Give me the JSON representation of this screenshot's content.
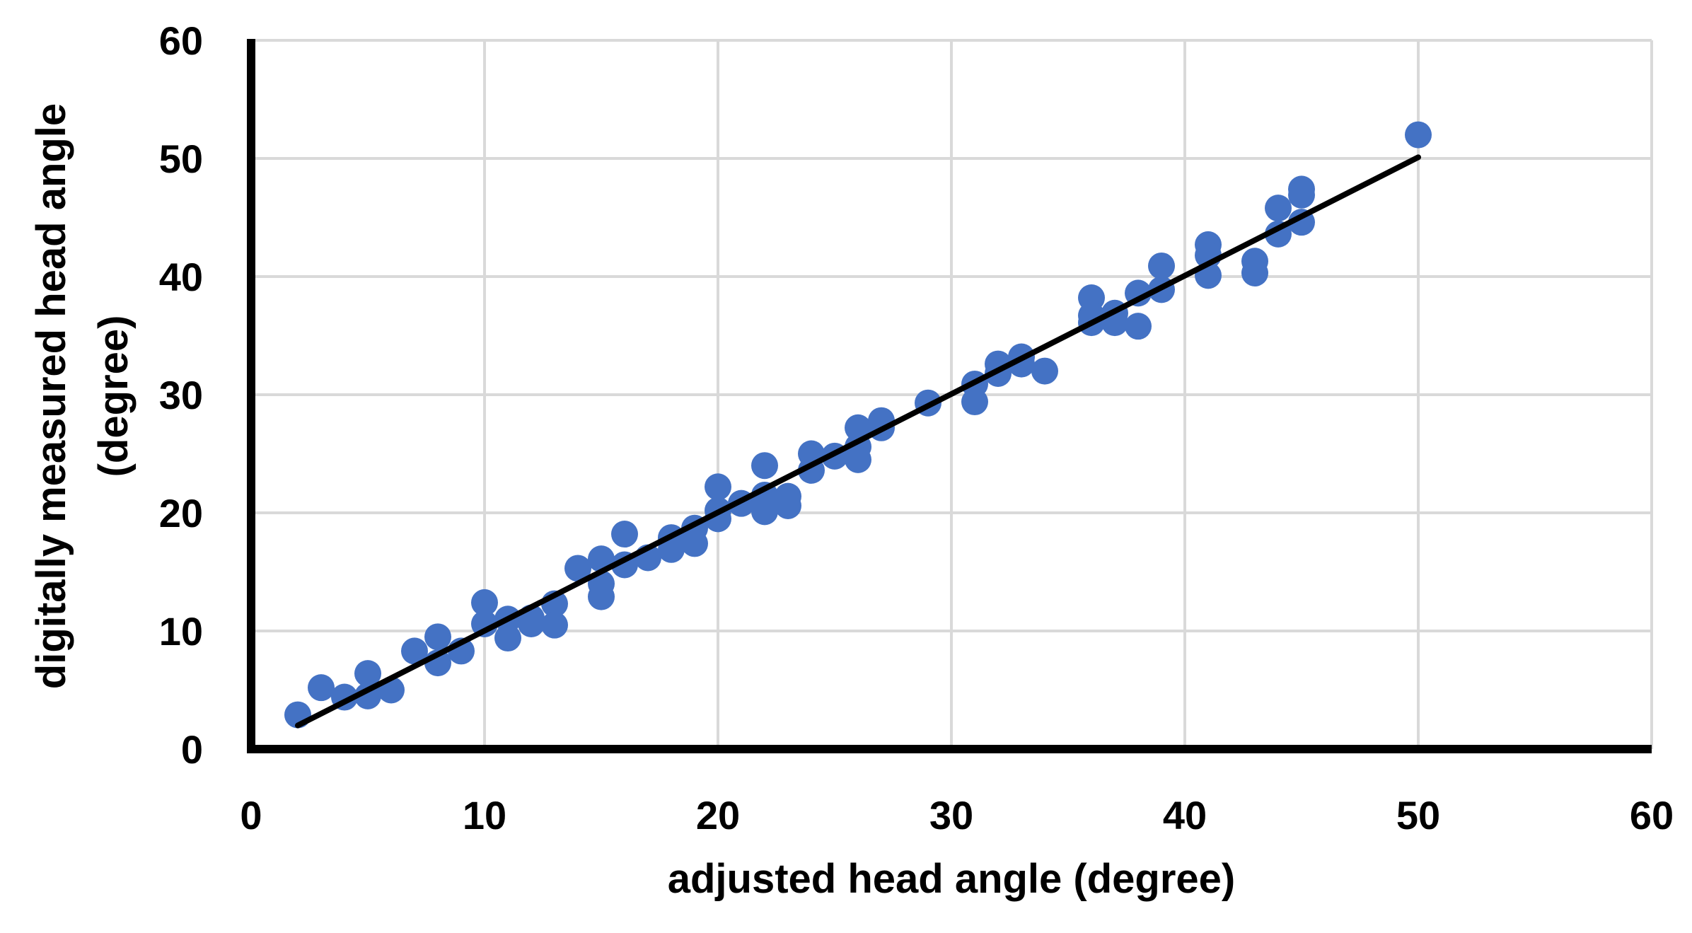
{
  "chart_data": {
    "type": "scatter",
    "title": "",
    "xlabel": "adjusted head angle (degree)",
    "ylabel_line1": "digitally measured head angle",
    "ylabel_line2": "(degree)",
    "xlim": [
      0,
      60
    ],
    "ylim": [
      0,
      60
    ],
    "xticks": [
      0,
      10,
      20,
      30,
      40,
      50,
      60
    ],
    "yticks": [
      0,
      10,
      20,
      30,
      40,
      50,
      60
    ],
    "grid": true,
    "legend": false,
    "colors": {
      "points": "#4472C4",
      "trendline": "#000000",
      "grid": "#D9D9D9",
      "axis": "#000000"
    },
    "series": [
      {
        "points": [
          [
            2,
            2.9
          ],
          [
            3,
            5.2
          ],
          [
            4,
            4.4
          ],
          [
            5,
            6.4
          ],
          [
            5,
            4.5
          ],
          [
            6,
            5.0
          ],
          [
            7,
            8.3
          ],
          [
            8,
            9.5
          ],
          [
            8,
            7.3
          ],
          [
            9,
            8.3
          ],
          [
            10,
            12.4
          ],
          [
            10,
            10.6
          ],
          [
            11,
            11.0
          ],
          [
            11,
            9.4
          ],
          [
            12,
            11.1
          ],
          [
            12,
            10.6
          ],
          [
            13,
            12.3
          ],
          [
            13,
            10.5
          ],
          [
            14,
            15.3
          ],
          [
            15,
            16.1
          ],
          [
            15,
            14.0
          ],
          [
            15,
            12.9
          ],
          [
            16,
            18.2
          ],
          [
            16,
            15.6
          ],
          [
            17,
            16.2
          ],
          [
            18,
            17.9
          ],
          [
            18,
            16.9
          ],
          [
            19,
            18.7
          ],
          [
            19,
            17.4
          ],
          [
            20,
            22.2
          ],
          [
            20,
            20.2
          ],
          [
            20,
            19.5
          ],
          [
            21,
            20.8
          ],
          [
            22,
            24.0
          ],
          [
            22,
            21.5
          ],
          [
            22,
            20.1
          ],
          [
            23,
            21.4
          ],
          [
            23,
            20.6
          ],
          [
            24,
            25.0
          ],
          [
            24,
            23.6
          ],
          [
            25,
            24.8
          ],
          [
            26,
            27.2
          ],
          [
            26,
            25.6
          ],
          [
            26,
            24.5
          ],
          [
            27,
            27.8
          ],
          [
            27,
            27.2
          ],
          [
            29,
            29.3
          ],
          [
            31,
            30.9
          ],
          [
            31,
            29.4
          ],
          [
            32,
            32.6
          ],
          [
            32,
            31.8
          ],
          [
            33,
            33.2
          ],
          [
            33,
            32.6
          ],
          [
            34,
            32.0
          ],
          [
            36,
            38.2
          ],
          [
            36,
            36.7
          ],
          [
            36,
            36.1
          ],
          [
            37,
            36.9
          ],
          [
            37,
            36.1
          ],
          [
            38,
            38.6
          ],
          [
            38,
            35.8
          ],
          [
            39,
            40.9
          ],
          [
            39,
            38.9
          ],
          [
            41,
            42.7
          ],
          [
            41,
            41.8
          ],
          [
            41,
            40.1
          ],
          [
            43,
            41.3
          ],
          [
            43,
            40.3
          ],
          [
            44,
            45.8
          ],
          [
            44,
            43.6
          ],
          [
            45,
            47.4
          ],
          [
            45,
            46.9
          ],
          [
            45,
            44.6
          ],
          [
            50,
            52.0
          ]
        ]
      }
    ],
    "trendline": {
      "x": [
        2,
        50
      ],
      "y": [
        2,
        50.1
      ]
    }
  }
}
